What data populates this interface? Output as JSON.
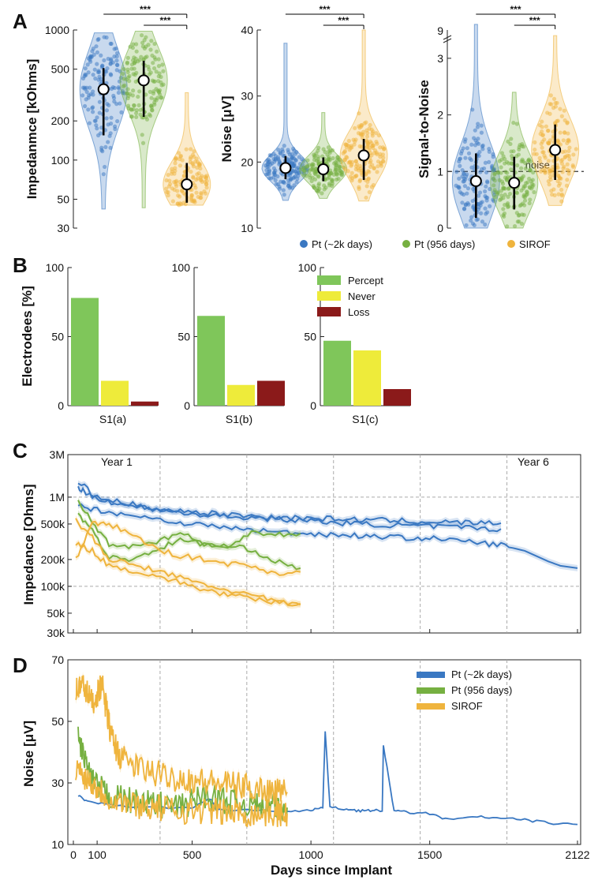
{
  "colors": {
    "pt_2k": "#3a78c2",
    "pt_956": "#76b041",
    "sirof": "#efb43d",
    "percept": "#7fc65a",
    "never": "#eeeb3a",
    "loss": "#8b1a1a",
    "axis": "#222222",
    "grid": "#aaaaaa"
  },
  "panels": {
    "a": "A",
    "b": "B",
    "c": "C",
    "d": "D"
  },
  "legend_a": {
    "items": [
      "Pt (~2k days)",
      "Pt (956 days)",
      "SIROF"
    ]
  },
  "legend_b": {
    "items": [
      "Percept",
      "Never",
      "Loss"
    ]
  },
  "legend_d": {
    "items": [
      "Pt (~2k days)",
      "Pt (956 days)",
      "SIROF"
    ]
  },
  "chart_data": [
    {
      "id": "A1",
      "type": "violin",
      "ylabel": "Impedanmce [kOhms]",
      "yscale": "log",
      "ylim": [
        30,
        1000
      ],
      "yticks": [
        30,
        50,
        100,
        200,
        500,
        1000
      ],
      "ytick_labels": [
        "30",
        "50",
        "100",
        "200",
        "500",
        "1000"
      ],
      "groups": [
        "Pt (~2k days)",
        "Pt (956 days)",
        "SIROF"
      ],
      "median": [
        350,
        410,
        65
      ],
      "lower": [
        155,
        215,
        47
      ],
      "upper": [
        510,
        580,
        95
      ],
      "range_min": [
        42,
        43,
        45
      ],
      "range_max": [
        950,
        980,
        330
      ],
      "significance": [
        "***",
        "***"
      ]
    },
    {
      "id": "A2",
      "type": "violin",
      "ylabel": "Noise [μV]",
      "yscale": "linear",
      "ylim": [
        10,
        40
      ],
      "yticks": [
        10,
        20,
        30,
        40
      ],
      "ytick_labels": [
        "10",
        "20",
        "30",
        "40"
      ],
      "groups": [
        "Pt (~2k days)",
        "Pt (956 days)",
        "SIROF"
      ],
      "median": [
        19.1,
        18.9,
        21.0
      ],
      "lower": [
        17.4,
        17.1,
        17.3
      ],
      "upper": [
        20.9,
        20.7,
        23.5
      ],
      "range_min": [
        14.2,
        14.5,
        14.1
      ],
      "range_max": [
        38,
        27.5,
        40
      ],
      "significance": [
        "***",
        "***"
      ]
    },
    {
      "id": "A3",
      "type": "violin",
      "ylabel": "Signal-to-Noise",
      "yscale": "linear",
      "ylim": [
        0,
        3.5
      ],
      "yticks": [
        0,
        1,
        2,
        3
      ],
      "ytick_labels": [
        "0",
        "1",
        "2",
        "3"
      ],
      "axis_break_label": "9",
      "groups": [
        "Pt (~2k days)",
        "Pt (956 days)",
        "SIROF"
      ],
      "median": [
        0.83,
        0.8,
        1.38
      ],
      "lower": [
        0.18,
        0.33,
        0.85
      ],
      "upper": [
        1.32,
        1.26,
        1.83
      ],
      "range_min": [
        0.0,
        0.0,
        0.4
      ],
      "range_max": [
        3.6,
        2.4,
        3.4
      ],
      "reference_line": 1,
      "reference_label": "noise",
      "significance": [
        "***",
        "***"
      ]
    },
    {
      "id": "B",
      "type": "bar",
      "ylabel": "Electrodees [%]",
      "ylim": [
        0,
        100
      ],
      "yticks": [
        0,
        50,
        100
      ],
      "ytick_labels": [
        "0",
        "50",
        "100"
      ],
      "series": [
        "Percept",
        "Never",
        "Loss"
      ],
      "subjects": [
        {
          "name": "S1(a)",
          "values": [
            78,
            18,
            3
          ]
        },
        {
          "name": "S1(b)",
          "values": [
            65,
            15,
            18
          ]
        },
        {
          "name": "S1(c)",
          "values": [
            47,
            40,
            12
          ]
        }
      ]
    },
    {
      "id": "C",
      "type": "line",
      "ylabel": "Impedance [Ohms]",
      "yscale": "log",
      "ylim": [
        30000,
        3000000
      ],
      "yticks": [
        30000,
        50000,
        100000,
        200000,
        500000,
        1000000,
        3000000
      ],
      "ytick_labels": [
        "30k",
        "50k",
        "100k",
        "200k",
        "500k",
        "1M",
        "3M"
      ],
      "xlim": [
        0,
        2122
      ],
      "year_lines": [
        365,
        730,
        1095,
        1460,
        1825
      ],
      "annotations": [
        "Year 1",
        "Year 6"
      ],
      "series": [
        {
          "name": "Pt (~2k days)",
          "x": [
            20,
            60,
            120,
            200,
            300,
            400,
            500,
            600,
            700,
            800,
            900,
            1000,
            1100,
            1200,
            1300,
            1400,
            1500,
            1600,
            1700,
            1800
          ],
          "y": [
            1300000,
            1050000,
            950000,
            820000,
            760000,
            720000,
            690000,
            650000,
            630000,
            600000,
            590000,
            580000,
            570000,
            560000,
            550000,
            540000,
            530000,
            520000,
            515000,
            510000
          ]
        },
        {
          "name": "Pt (~2k days)",
          "x": [
            20,
            100,
            200,
            300,
            400,
            500,
            600,
            700,
            800,
            900,
            1000,
            1100,
            1200,
            1300,
            1400,
            1500,
            1600,
            1700,
            1800
          ],
          "y": [
            1500000,
            980000,
            900000,
            760000,
            700000,
            650000,
            620000,
            600000,
            580000,
            560000,
            540000,
            520000,
            500000,
            490000,
            480000,
            470000,
            460000,
            450000,
            440000
          ]
        },
        {
          "name": "Pt (~2k days)",
          "x": [
            20,
            100,
            200,
            300,
            400,
            500,
            600,
            700,
            800,
            900,
            1000,
            1100,
            1200,
            1300,
            1400,
            1500,
            1600,
            1700,
            1800,
            1900,
            2000,
            2050,
            2122
          ],
          "y": [
            800000,
            720000,
            650000,
            600000,
            540000,
            500000,
            470000,
            440000,
            420000,
            400000,
            390000,
            380000,
            370000,
            360000,
            350000,
            345000,
            330000,
            310000,
            290000,
            250000,
            190000,
            170000,
            160000
          ]
        },
        {
          "name": "Pt (956 days)",
          "x": [
            20,
            80,
            150,
            250,
            350,
            450,
            550,
            650,
            750,
            850,
            956
          ],
          "y": [
            900000,
            520000,
            300000,
            280000,
            320000,
            400000,
            300000,
            260000,
            420000,
            380000,
            390000
          ]
        },
        {
          "name": "Pt (956 days)",
          "x": [
            20,
            80,
            150,
            250,
            350,
            450,
            550,
            650,
            750,
            850,
            956
          ],
          "y": [
            650000,
            420000,
            210000,
            200000,
            260000,
            330000,
            300000,
            280000,
            260000,
            190000,
            160000
          ]
        },
        {
          "name": "SIROF",
          "x": [
            10,
            80,
            150,
            250,
            350,
            450,
            550,
            650,
            750,
            850,
            956
          ],
          "y": [
            200000,
            500000,
            500000,
            380000,
            260000,
            220000,
            200000,
            180000,
            170000,
            140000,
            145000
          ]
        },
        {
          "name": "SIROF",
          "x": [
            10,
            80,
            150,
            250,
            350,
            450,
            550,
            650,
            750,
            850,
            956
          ],
          "y": [
            550000,
            350000,
            200000,
            175000,
            150000,
            125000,
            105000,
            90000,
            80000,
            68000,
            62000
          ]
        },
        {
          "name": "SIROF",
          "x": [
            10,
            80,
            150,
            250,
            350,
            450,
            550,
            650,
            750,
            850,
            956
          ],
          "y": [
            300000,
            250000,
            170000,
            150000,
            130000,
            110000,
            92000,
            80000,
            72000,
            66000,
            64000
          ]
        }
      ]
    },
    {
      "id": "D",
      "type": "line",
      "ylabel": "Noise [μV]",
      "xlabel": "Days since Implant",
      "ylim": [
        10,
        70
      ],
      "yticks": [
        10,
        30,
        50,
        70
      ],
      "ytick_labels": [
        "10",
        "30",
        "50",
        "70"
      ],
      "xlim": [
        0,
        2122
      ],
      "xticks": [
        0,
        100,
        500,
        1000,
        1500,
        2122
      ],
      "xtick_labels": [
        "0",
        "100",
        "500",
        "1000",
        "1500",
        "2122"
      ],
      "year_lines": [
        365,
        730,
        1095,
        1460,
        1825
      ],
      "series": [
        {
          "name": "Pt (~2k days)",
          "x": [
            20,
            60,
            150,
            300,
            500,
            580,
            600,
            700,
            900,
            1000,
            1050,
            1060,
            1080,
            1150,
            1200,
            1250,
            1300,
            1305,
            1350,
            1400,
            1500,
            1580,
            1700,
            1800,
            1900,
            2000,
            2122
          ],
          "y": [
            26,
            24,
            23,
            22,
            22,
            25,
            21.5,
            21,
            21,
            21,
            22,
            47,
            22,
            21.5,
            21,
            21,
            21,
            42,
            21,
            20.5,
            20,
            18,
            19,
            18.5,
            18,
            17,
            16.5
          ]
        },
        {
          "name": "Pt (956 days)",
          "x": [
            20,
            80,
            150,
            250,
            350,
            450,
            550,
            650,
            750,
            850,
            900
          ],
          "y": [
            45,
            30,
            26,
            24,
            23,
            22,
            26,
            24,
            23,
            22,
            22
          ]
        },
        {
          "name": "SIROF",
          "x": [
            10,
            40,
            80,
            120,
            160,
            200,
            300,
            400,
            500,
            600,
            700,
            800,
            900
          ],
          "y": [
            60,
            62,
            56,
            62,
            45,
            38,
            34,
            32,
            31,
            30,
            29,
            28,
            27
          ]
        },
        {
          "name": "SIROF",
          "x": [
            10,
            80,
            150,
            250,
            350,
            450,
            550,
            650,
            750,
            850,
            900
          ],
          "y": [
            35,
            30,
            25,
            23,
            22,
            21,
            21,
            20.5,
            20,
            20,
            20
          ]
        }
      ]
    }
  ]
}
